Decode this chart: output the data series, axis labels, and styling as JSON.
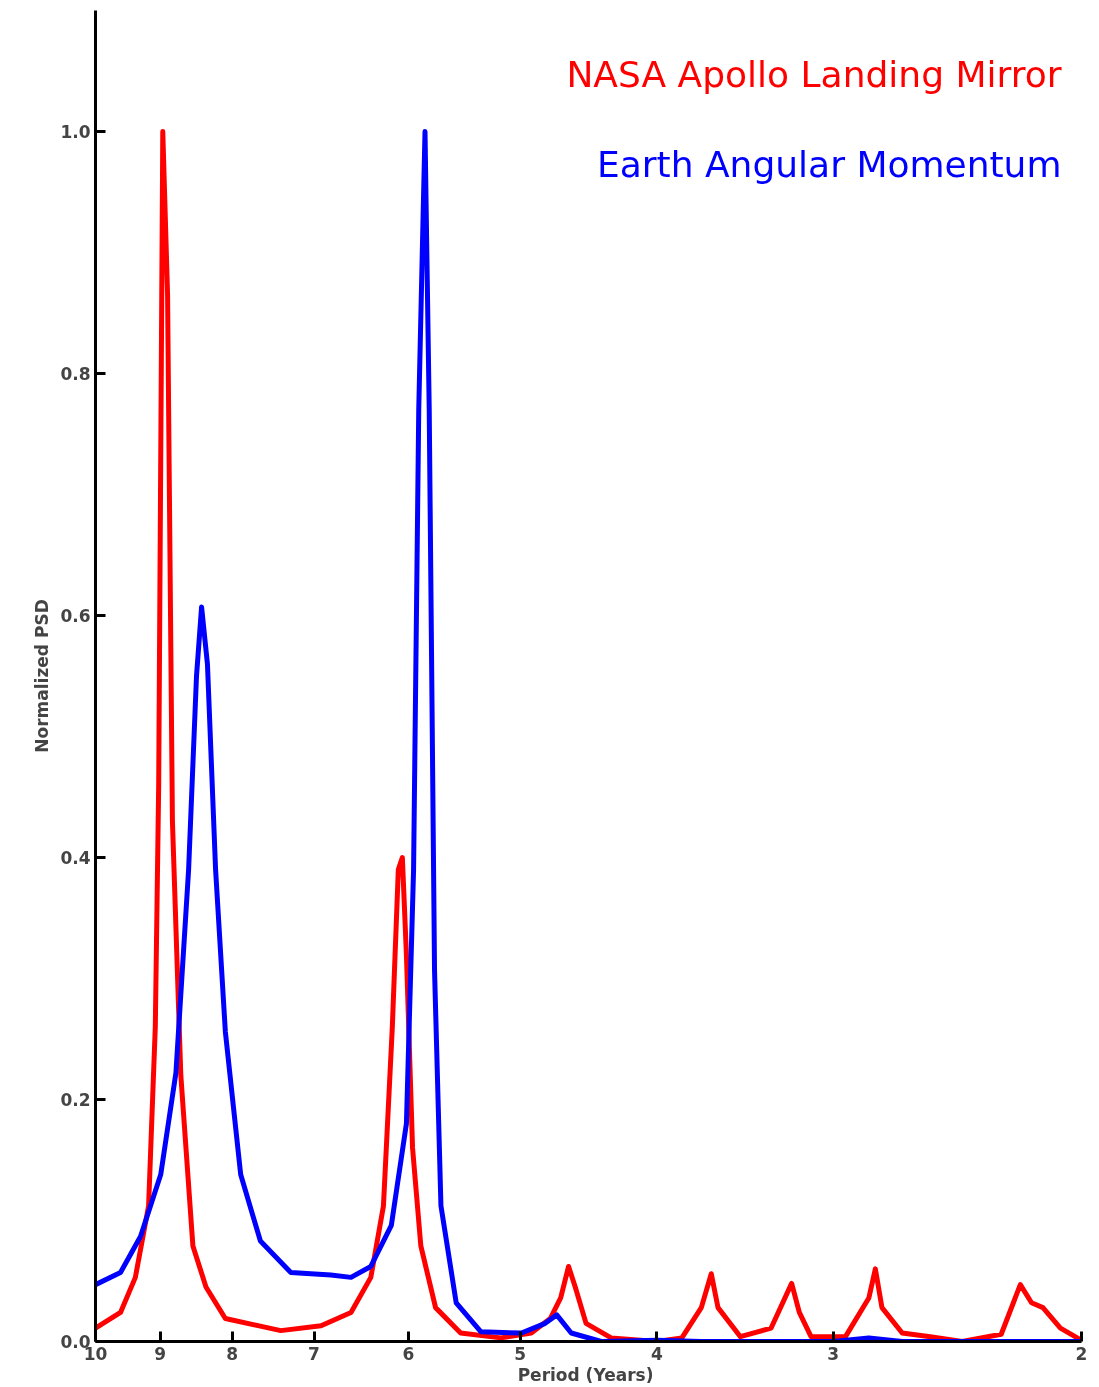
{
  "chart_data": {
    "type": "line",
    "xlabel": "Period  (Years)",
    "ylabel": "Normalized PSD",
    "log": "x",
    "xlim": [
      10,
      2
    ],
    "ylim": [
      0,
      1.1
    ],
    "xticks": [
      10,
      9,
      8,
      7,
      6,
      5,
      4,
      3,
      2
    ],
    "yticks": [
      {
        "value": 0,
        "label": "0.0"
      },
      {
        "value": 0.2,
        "label": "0.2"
      },
      {
        "value": 0.4,
        "label": "0.4"
      },
      {
        "value": 0.6,
        "label": "0.6"
      },
      {
        "value": 0.8,
        "label": "0.8"
      },
      {
        "value": 1,
        "label": "1.0"
      }
    ],
    "grid": false,
    "legend": "top right",
    "marker": "none",
    "line_style": "solid",
    "series": [
      {
        "name": "NASA Apollo Landing Mirror",
        "color": "#ff0000",
        "x": [
          10,
          9.6,
          9.37,
          9.17,
          9.07,
          9.02,
          8.96,
          8.89,
          8.82,
          8.7,
          8.53,
          8.35,
          8.09,
          7.39,
          6.92,
          6.59,
          6.38,
          6.25,
          6.16,
          6.1,
          6.06,
          6.02,
          5.96,
          5.88,
          5.74,
          5.51,
          5.16,
          4.91,
          4.76,
          4.68,
          4.62,
          4.57,
          4.49,
          4.31,
          4.0,
          3.84,
          3.72,
          3.66,
          3.62,
          3.49,
          3.32,
          3.21,
          3.17,
          3.11,
          2.94,
          2.83,
          2.8,
          2.77,
          2.68,
          2.56,
          2.43,
          2.28,
          2.21,
          2.17,
          2.13,
          2.07,
          2.0
        ],
        "values": [
          0.011,
          0.024,
          0.053,
          0.112,
          0.26,
          0.46,
          1.0,
          0.865,
          0.43,
          0.22,
          0.079,
          0.045,
          0.019,
          0.009,
          0.013,
          0.024,
          0.053,
          0.112,
          0.26,
          0.39,
          0.4,
          0.32,
          0.16,
          0.079,
          0.028,
          0.007,
          0.003,
          0.007,
          0.019,
          0.036,
          0.062,
          0.045,
          0.015,
          0.003,
          0.0,
          0.003,
          0.028,
          0.056,
          0.028,
          0.004,
          0.011,
          0.048,
          0.024,
          0.004,
          0.004,
          0.036,
          0.06,
          0.028,
          0.007,
          0.004,
          0.0,
          0.006,
          0.047,
          0.032,
          0.028,
          0.011,
          0.001
        ]
      },
      {
        "name": "Earth Angular Momentum",
        "color": "#0000ff",
        "x": [
          10,
          9.6,
          9.29,
          8.99,
          8.77,
          8.59,
          8.48,
          8.41,
          8.33,
          8.22,
          8.09,
          7.89,
          7.64,
          7.27,
          6.81,
          6.59,
          6.38,
          6.17,
          6.02,
          5.95,
          5.9,
          5.84,
          5.8,
          5.75,
          5.69,
          5.55,
          5.33,
          4.99,
          4.8,
          4.71,
          4.6,
          4.38,
          4.0,
          3.72,
          3.23,
          3.0,
          2.83,
          2.68,
          2.0
        ],
        "values": [
          0.047,
          0.057,
          0.087,
          0.138,
          0.222,
          0.39,
          0.55,
          0.607,
          0.56,
          0.39,
          0.256,
          0.138,
          0.083,
          0.057,
          0.055,
          0.053,
          0.062,
          0.096,
          0.18,
          0.39,
          0.77,
          1.0,
          0.77,
          0.307,
          0.112,
          0.032,
          0.008,
          0.007,
          0.015,
          0.022,
          0.007,
          0.0,
          0.001,
          0.0,
          0.0,
          0.0,
          0.003,
          0.0,
          0.0
        ]
      }
    ]
  }
}
